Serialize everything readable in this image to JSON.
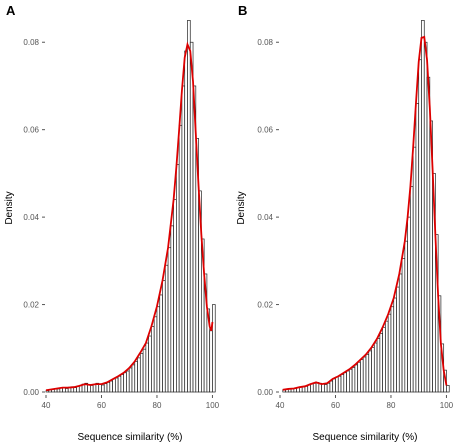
{
  "chart_data": [
    {
      "type": "bar",
      "panel_label": "A",
      "xlabel": "Sequence similarity (%)",
      "ylabel": "Density",
      "xlim": [
        40,
        102
      ],
      "ylim": [
        0,
        0.086
      ],
      "x_ticks": [
        40,
        60,
        80,
        100
      ],
      "y_ticks": [
        0.0,
        0.02,
        0.04,
        0.06,
        0.08
      ],
      "y_tick_labels": [
        "0.00",
        "0.02",
        "0.04",
        "0.06",
        "0.08"
      ],
      "bin_width": 1,
      "bins": [
        {
          "x": 40,
          "y": 0.0003
        },
        {
          "x": 41,
          "y": 0.0005
        },
        {
          "x": 42,
          "y": 0.0006
        },
        {
          "x": 43,
          "y": 0.0008
        },
        {
          "x": 44,
          "y": 0.0007
        },
        {
          "x": 45,
          "y": 0.0009
        },
        {
          "x": 46,
          "y": 0.001
        },
        {
          "x": 47,
          "y": 0.0008
        },
        {
          "x": 48,
          "y": 0.0011
        },
        {
          "x": 49,
          "y": 0.0012
        },
        {
          "x": 50,
          "y": 0.001
        },
        {
          "x": 51,
          "y": 0.0013
        },
        {
          "x": 52,
          "y": 0.0015
        },
        {
          "x": 53,
          "y": 0.0018
        },
        {
          "x": 54,
          "y": 0.002
        },
        {
          "x": 55,
          "y": 0.0017
        },
        {
          "x": 56,
          "y": 0.0015
        },
        {
          "x": 57,
          "y": 0.0017
        },
        {
          "x": 58,
          "y": 0.002
        },
        {
          "x": 59,
          "y": 0.0018
        },
        {
          "x": 60,
          "y": 0.0016
        },
        {
          "x": 61,
          "y": 0.0019
        },
        {
          "x": 62,
          "y": 0.0022
        },
        {
          "x": 63,
          "y": 0.0025
        },
        {
          "x": 64,
          "y": 0.003
        },
        {
          "x": 65,
          "y": 0.0032
        },
        {
          "x": 66,
          "y": 0.0036
        },
        {
          "x": 67,
          "y": 0.004
        },
        {
          "x": 68,
          "y": 0.0044
        },
        {
          "x": 69,
          "y": 0.0048
        },
        {
          "x": 70,
          "y": 0.0055
        },
        {
          "x": 71,
          "y": 0.0062
        },
        {
          "x": 72,
          "y": 0.007
        },
        {
          "x": 73,
          "y": 0.0078
        },
        {
          "x": 74,
          "y": 0.0088
        },
        {
          "x": 75,
          "y": 0.0098
        },
        {
          "x": 76,
          "y": 0.0112
        },
        {
          "x": 77,
          "y": 0.0128
        },
        {
          "x": 78,
          "y": 0.015
        },
        {
          "x": 79,
          "y": 0.0172
        },
        {
          "x": 80,
          "y": 0.0195
        },
        {
          "x": 81,
          "y": 0.0222
        },
        {
          "x": 82,
          "y": 0.0255
        },
        {
          "x": 83,
          "y": 0.029
        },
        {
          "x": 84,
          "y": 0.033
        },
        {
          "x": 85,
          "y": 0.038
        },
        {
          "x": 86,
          "y": 0.044
        },
        {
          "x": 87,
          "y": 0.052
        },
        {
          "x": 88,
          "y": 0.061
        },
        {
          "x": 89,
          "y": 0.07
        },
        {
          "x": 90,
          "y": 0.078
        },
        {
          "x": 91,
          "y": 0.085
        },
        {
          "x": 92,
          "y": 0.08
        },
        {
          "x": 93,
          "y": 0.07
        },
        {
          "x": 94,
          "y": 0.058
        },
        {
          "x": 95,
          "y": 0.046
        },
        {
          "x": 96,
          "y": 0.035
        },
        {
          "x": 97,
          "y": 0.027
        },
        {
          "x": 98,
          "y": 0.019
        },
        {
          "x": 99,
          "y": 0.014
        },
        {
          "x": 100,
          "y": 0.02
        }
      ],
      "density_curve": {
        "color": "#dd0000",
        "x": [
          40,
          42,
          44,
          46,
          48,
          50,
          52,
          54,
          56,
          58,
          60,
          62,
          64,
          66,
          68,
          70,
          72,
          74,
          76,
          78,
          80,
          82,
          84,
          86,
          87,
          88,
          89,
          90,
          91,
          92,
          93,
          94,
          95,
          96,
          97,
          98,
          99,
          99.6,
          100
        ],
        "y": [
          0.0004,
          0.0006,
          0.0008,
          0.001,
          0.001,
          0.0011,
          0.0014,
          0.0018,
          0.0016,
          0.0018,
          0.0018,
          0.0022,
          0.0029,
          0.0036,
          0.0044,
          0.0055,
          0.007,
          0.009,
          0.0112,
          0.015,
          0.0196,
          0.0255,
          0.033,
          0.044,
          0.0515,
          0.06,
          0.069,
          0.0765,
          0.0795,
          0.078,
          0.071,
          0.059,
          0.047,
          0.036,
          0.027,
          0.0195,
          0.015,
          0.014,
          0.016
        ]
      }
    },
    {
      "type": "bar",
      "panel_label": "B",
      "xlabel": "Sequence similarity (%)",
      "ylabel": "Density",
      "xlim": [
        40,
        102
      ],
      "ylim": [
        0,
        0.086
      ],
      "x_ticks": [
        40,
        60,
        80,
        100
      ],
      "y_ticks": [
        0.0,
        0.02,
        0.04,
        0.06,
        0.08
      ],
      "y_tick_labels": [
        "0.00",
        "0.02",
        "0.04",
        "0.06",
        "0.08"
      ],
      "bin_width": 1,
      "bins": [
        {
          "x": 41,
          "y": 0.0005
        },
        {
          "x": 42,
          "y": 0.0006
        },
        {
          "x": 43,
          "y": 0.0007
        },
        {
          "x": 44,
          "y": 0.0008
        },
        {
          "x": 45,
          "y": 0.0008
        },
        {
          "x": 46,
          "y": 0.001
        },
        {
          "x": 47,
          "y": 0.0011
        },
        {
          "x": 48,
          "y": 0.0012
        },
        {
          "x": 49,
          "y": 0.0013
        },
        {
          "x": 50,
          "y": 0.0016
        },
        {
          "x": 51,
          "y": 0.0018
        },
        {
          "x": 52,
          "y": 0.002
        },
        {
          "x": 53,
          "y": 0.0022
        },
        {
          "x": 54,
          "y": 0.002
        },
        {
          "x": 55,
          "y": 0.0018
        },
        {
          "x": 56,
          "y": 0.0017
        },
        {
          "x": 57,
          "y": 0.002
        },
        {
          "x": 58,
          "y": 0.0025
        },
        {
          "x": 59,
          "y": 0.003
        },
        {
          "x": 60,
          "y": 0.0034
        },
        {
          "x": 61,
          "y": 0.0036
        },
        {
          "x": 62,
          "y": 0.004
        },
        {
          "x": 63,
          "y": 0.0044
        },
        {
          "x": 64,
          "y": 0.0048
        },
        {
          "x": 65,
          "y": 0.0052
        },
        {
          "x": 66,
          "y": 0.0056
        },
        {
          "x": 67,
          "y": 0.0062
        },
        {
          "x": 68,
          "y": 0.0068
        },
        {
          "x": 69,
          "y": 0.0074
        },
        {
          "x": 70,
          "y": 0.008
        },
        {
          "x": 71,
          "y": 0.0086
        },
        {
          "x": 72,
          "y": 0.0094
        },
        {
          "x": 73,
          "y": 0.0102
        },
        {
          "x": 74,
          "y": 0.0112
        },
        {
          "x": 75,
          "y": 0.0122
        },
        {
          "x": 76,
          "y": 0.0134
        },
        {
          "x": 77,
          "y": 0.0148
        },
        {
          "x": 78,
          "y": 0.0162
        },
        {
          "x": 79,
          "y": 0.0178
        },
        {
          "x": 80,
          "y": 0.0195
        },
        {
          "x": 81,
          "y": 0.0215
        },
        {
          "x": 82,
          "y": 0.024
        },
        {
          "x": 83,
          "y": 0.027
        },
        {
          "x": 84,
          "y": 0.0305
        },
        {
          "x": 85,
          "y": 0.0345
        },
        {
          "x": 86,
          "y": 0.04
        },
        {
          "x": 87,
          "y": 0.047
        },
        {
          "x": 88,
          "y": 0.056
        },
        {
          "x": 89,
          "y": 0.066
        },
        {
          "x": 90,
          "y": 0.076
        },
        {
          "x": 91,
          "y": 0.085
        },
        {
          "x": 92,
          "y": 0.08
        },
        {
          "x": 93,
          "y": 0.072
        },
        {
          "x": 94,
          "y": 0.062
        },
        {
          "x": 95,
          "y": 0.05
        },
        {
          "x": 96,
          "y": 0.036
        },
        {
          "x": 97,
          "y": 0.022
        },
        {
          "x": 98,
          "y": 0.011
        },
        {
          "x": 99,
          "y": 0.005
        },
        {
          "x": 100,
          "y": 0.0015
        }
      ],
      "density_curve": {
        "color": "#dd0000",
        "x": [
          41,
          43,
          45,
          47,
          49,
          51,
          53,
          55,
          57,
          59,
          61,
          63,
          65,
          67,
          69,
          71,
          73,
          75,
          77,
          79,
          81,
          83,
          85,
          86,
          87,
          88,
          89,
          90,
          91,
          92,
          93,
          94,
          95,
          96,
          97,
          98,
          99,
          100
        ],
        "y": [
          0.0005,
          0.0007,
          0.0008,
          0.0011,
          0.0013,
          0.0018,
          0.0022,
          0.0018,
          0.002,
          0.003,
          0.0036,
          0.0044,
          0.0052,
          0.0062,
          0.0074,
          0.0086,
          0.0102,
          0.0122,
          0.0148,
          0.0178,
          0.0215,
          0.027,
          0.0345,
          0.04,
          0.047,
          0.056,
          0.066,
          0.0755,
          0.081,
          0.0812,
          0.076,
          0.065,
          0.051,
          0.036,
          0.022,
          0.011,
          0.005,
          0.0015
        ]
      }
    }
  ]
}
